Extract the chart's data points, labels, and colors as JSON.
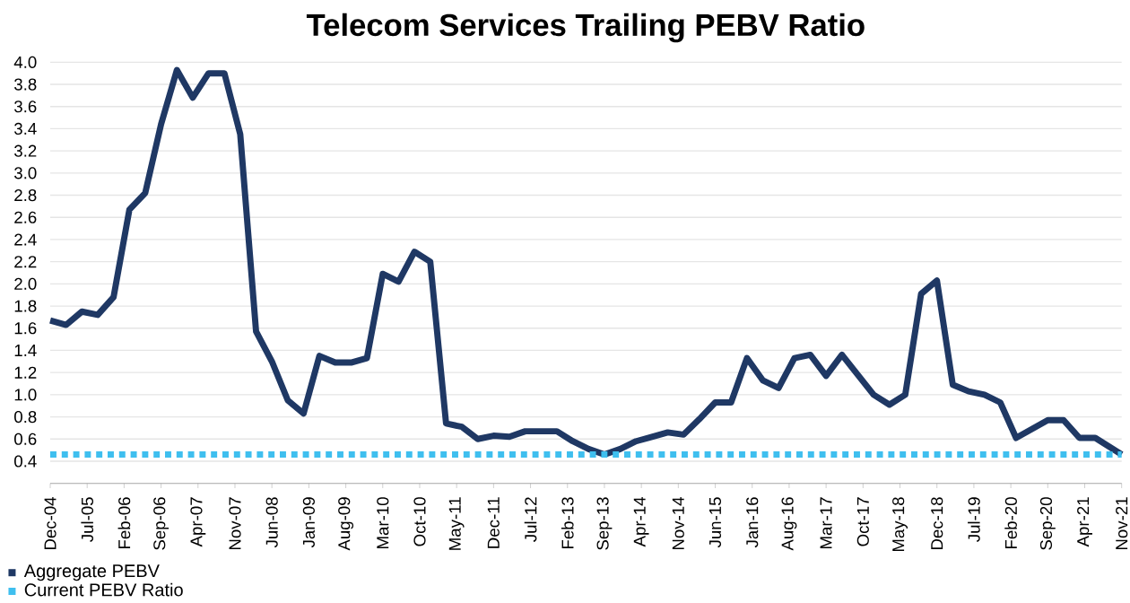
{
  "chart_data": {
    "type": "line",
    "title": "Telecom Services Trailing PEBV Ratio",
    "x": [
      "2004-12",
      "2005-03",
      "2005-06",
      "2005-09",
      "2005-12",
      "2006-03",
      "2006-06",
      "2006-09",
      "2006-12",
      "2007-03",
      "2007-06",
      "2007-09",
      "2007-12",
      "2008-03",
      "2008-06",
      "2008-09",
      "2008-12",
      "2009-03",
      "2009-06",
      "2009-09",
      "2009-12",
      "2010-03",
      "2010-06",
      "2010-09",
      "2010-12",
      "2011-03",
      "2011-06",
      "2011-09",
      "2011-12",
      "2012-03",
      "2012-06",
      "2012-09",
      "2012-12",
      "2013-03",
      "2013-06",
      "2013-09",
      "2013-12",
      "2014-03",
      "2014-06",
      "2014-09",
      "2014-12",
      "2015-03",
      "2015-06",
      "2015-09",
      "2015-12",
      "2016-03",
      "2016-06",
      "2016-09",
      "2016-12",
      "2017-03",
      "2017-06",
      "2017-09",
      "2017-12",
      "2018-03",
      "2018-06",
      "2018-09",
      "2018-12",
      "2019-03",
      "2019-06",
      "2019-09",
      "2019-12",
      "2020-03",
      "2020-06",
      "2020-09",
      "2020-12",
      "2021-03",
      "2021-06",
      "2021-11"
    ],
    "series": [
      {
        "name": "Aggregate PEBV",
        "color": "#1f3864",
        "values": [
          1.67,
          1.63,
          1.75,
          1.72,
          1.88,
          2.67,
          2.82,
          3.44,
          3.93,
          3.68,
          3.9,
          3.9,
          3.35,
          1.57,
          1.3,
          0.95,
          0.83,
          1.35,
          1.29,
          1.29,
          1.33,
          2.09,
          2.02,
          2.29,
          2.2,
          0.74,
          0.71,
          0.6,
          0.63,
          0.62,
          0.67,
          0.67,
          0.67,
          0.58,
          0.51,
          0.46,
          0.51,
          0.58,
          0.62,
          0.66,
          0.64,
          0.78,
          0.93,
          0.93,
          1.33,
          1.13,
          1.06,
          1.33,
          1.36,
          1.17,
          1.36,
          1.18,
          1.0,
          0.91,
          1.0,
          1.91,
          2.03,
          1.09,
          1.03,
          1.0,
          0.93,
          0.61,
          0.69,
          0.77,
          0.77,
          0.61,
          0.61,
          0.46
        ]
      },
      {
        "name": "Current PEBV Ratio",
        "color": "#3fbfef",
        "line_style": "dotted",
        "x": [
          "2004-12",
          "2021-11"
        ],
        "values": [
          0.46,
          0.46
        ]
      }
    ],
    "xlim": [
      "2004-12",
      "2021-11"
    ],
    "xticks": [
      {
        "value": "2004-12",
        "label": "Dec-04"
      },
      {
        "value": "2005-07",
        "label": "Jul-05"
      },
      {
        "value": "2006-02",
        "label": "Feb-06"
      },
      {
        "value": "2006-09",
        "label": "Sep-06"
      },
      {
        "value": "2007-04",
        "label": "Apr-07"
      },
      {
        "value": "2007-11",
        "label": "Nov-07"
      },
      {
        "value": "2008-06",
        "label": "Jun-08"
      },
      {
        "value": "2009-01",
        "label": "Jan-09"
      },
      {
        "value": "2009-08",
        "label": "Aug-09"
      },
      {
        "value": "2010-03",
        "label": "Mar-10"
      },
      {
        "value": "2010-10",
        "label": "Oct-10"
      },
      {
        "value": "2011-05",
        "label": "May-11"
      },
      {
        "value": "2011-12",
        "label": "Dec-11"
      },
      {
        "value": "2012-07",
        "label": "Jul-12"
      },
      {
        "value": "2013-02",
        "label": "Feb-13"
      },
      {
        "value": "2013-09",
        "label": "Sep-13"
      },
      {
        "value": "2014-04",
        "label": "Apr-14"
      },
      {
        "value": "2014-11",
        "label": "Nov-14"
      },
      {
        "value": "2015-06",
        "label": "Jun-15"
      },
      {
        "value": "2016-01",
        "label": "Jan-16"
      },
      {
        "value": "2016-08",
        "label": "Aug-16"
      },
      {
        "value": "2017-03",
        "label": "Mar-17"
      },
      {
        "value": "2017-10",
        "label": "Oct-17"
      },
      {
        "value": "2018-05",
        "label": "May-18"
      },
      {
        "value": "2018-12",
        "label": "Dec-18"
      },
      {
        "value": "2019-07",
        "label": "Jul-19"
      },
      {
        "value": "2020-02",
        "label": "Feb-20"
      },
      {
        "value": "2020-09",
        "label": "Sep-20"
      },
      {
        "value": "2021-04",
        "label": "Apr-21"
      },
      {
        "value": "2021-11",
        "label": "Nov-21"
      }
    ],
    "ylim": [
      0.2,
      4.0
    ],
    "yticks": [
      0.4,
      0.6,
      0.8,
      {
        "value": 1,
        "label": "1.0"
      },
      1.2,
      1.4,
      1.6,
      1.8,
      {
        "value": 2,
        "label": "2.0"
      },
      2.2,
      2.4,
      2.6,
      2.8,
      {
        "value": 3,
        "label": "3.0"
      },
      3.2,
      3.4,
      3.6,
      3.8,
      {
        "value": 4,
        "label": "4.0"
      }
    ],
    "grid": "y",
    "legend": "bottom left",
    "line_style": "solid"
  }
}
